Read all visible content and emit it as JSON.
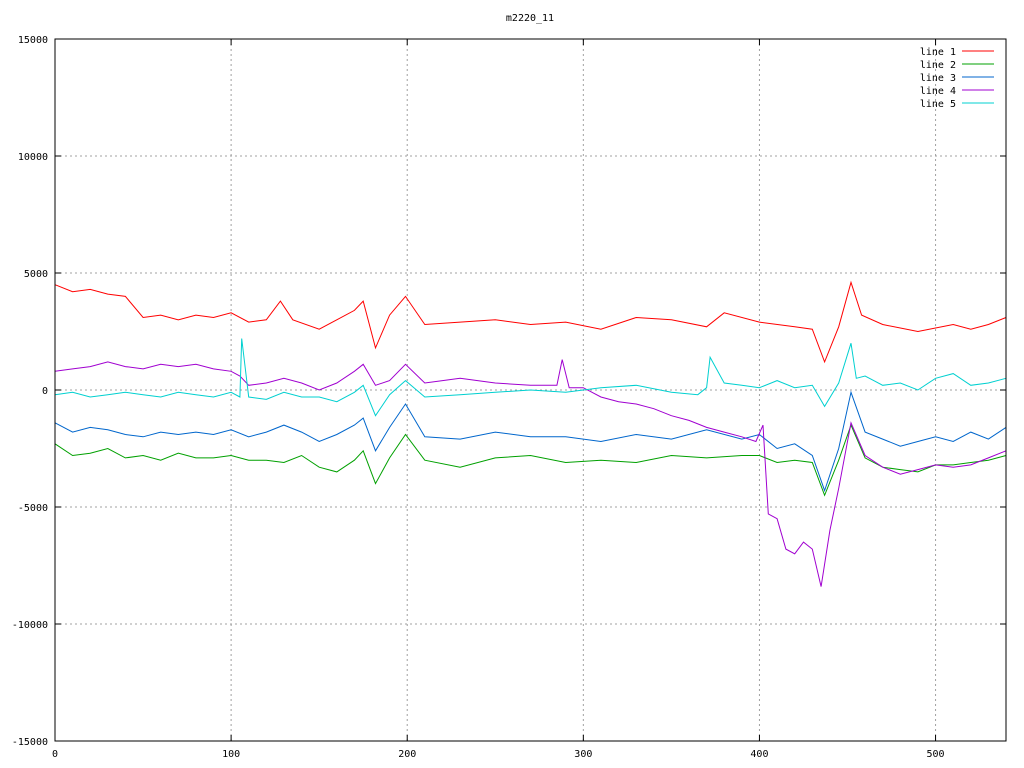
{
  "chart_data": {
    "type": "line",
    "title": "m2220_11",
    "xlim": [
      0,
      540
    ],
    "ylim": [
      -15000,
      15000
    ],
    "x_ticks": [
      0,
      100,
      200,
      300,
      400,
      500
    ],
    "y_ticks": [
      -15000,
      -10000,
      -5000,
      0,
      5000,
      10000,
      15000
    ],
    "grid": true,
    "legend_position": "top-right",
    "series": [
      {
        "name": "line 1",
        "color": "#ff0000",
        "x": [
          0,
          10,
          20,
          30,
          40,
          50,
          60,
          70,
          80,
          90,
          100,
          110,
          120,
          128,
          135,
          150,
          160,
          170,
          175,
          182,
          190,
          199,
          210,
          230,
          250,
          270,
          290,
          310,
          330,
          350,
          370,
          380,
          400,
          420,
          430,
          437,
          445,
          452,
          458,
          470,
          490,
          510,
          520,
          530,
          540
        ],
        "y": [
          4500,
          4200,
          4300,
          4100,
          4000,
          3100,
          3200,
          3000,
          3200,
          3100,
          3300,
          2900,
          3000,
          3800,
          3000,
          2600,
          3000,
          3400,
          3800,
          1800,
          3200,
          4000,
          2800,
          2900,
          3000,
          2800,
          2900,
          2600,
          3100,
          3000,
          2700,
          3300,
          2900,
          2700,
          2600,
          1200,
          2700,
          4600,
          3200,
          2800,
          2500,
          2800,
          2600,
          2800,
          3100
        ]
      },
      {
        "name": "line 2",
        "color": "#00a000",
        "x": [
          0,
          10,
          20,
          30,
          40,
          50,
          60,
          70,
          80,
          90,
          100,
          110,
          120,
          130,
          140,
          150,
          160,
          170,
          175,
          182,
          190,
          199,
          210,
          230,
          250,
          270,
          290,
          310,
          330,
          350,
          370,
          390,
          400,
          410,
          420,
          430,
          437,
          445,
          452,
          460,
          470,
          480,
          490,
          500,
          510,
          520,
          530,
          540
        ],
        "y": [
          -2300,
          -2800,
          -2700,
          -2500,
          -2900,
          -2800,
          -3000,
          -2700,
          -2900,
          -2900,
          -2800,
          -3000,
          -3000,
          -3100,
          -2800,
          -3300,
          -3500,
          -3000,
          -2600,
          -4000,
          -2900,
          -1900,
          -3000,
          -3300,
          -2900,
          -2800,
          -3100,
          -3000,
          -3100,
          -2800,
          -2900,
          -2800,
          -2800,
          -3100,
          -3000,
          -3100,
          -4500,
          -3000,
          -1500,
          -2900,
          -3300,
          -3400,
          -3500,
          -3200,
          -3200,
          -3100,
          -3000,
          -2800
        ]
      },
      {
        "name": "line 3",
        "color": "#0066cc",
        "x": [
          0,
          10,
          20,
          30,
          40,
          50,
          60,
          70,
          80,
          90,
          100,
          110,
          120,
          130,
          140,
          150,
          160,
          170,
          175,
          182,
          190,
          199,
          210,
          230,
          250,
          270,
          290,
          310,
          330,
          350,
          370,
          390,
          400,
          410,
          420,
          430,
          437,
          445,
          452,
          460,
          470,
          480,
          490,
          500,
          510,
          520,
          530,
          540
        ],
        "y": [
          -1400,
          -1800,
          -1600,
          -1700,
          -1900,
          -2000,
          -1800,
          -1900,
          -1800,
          -1900,
          -1700,
          -2000,
          -1800,
          -1500,
          -1800,
          -2200,
          -1900,
          -1500,
          -1200,
          -2600,
          -1600,
          -600,
          -2000,
          -2100,
          -1800,
          -2000,
          -2000,
          -2200,
          -1900,
          -2100,
          -1700,
          -2100,
          -1900,
          -2500,
          -2300,
          -2800,
          -4300,
          -2500,
          -100,
          -1800,
          -2100,
          -2400,
          -2200,
          -2000,
          -2200,
          -1800,
          -2100,
          -1600
        ]
      },
      {
        "name": "line 4",
        "color": "#a000d0",
        "x": [
          0,
          10,
          20,
          30,
          40,
          50,
          60,
          70,
          80,
          90,
          100,
          105,
          110,
          120,
          130,
          140,
          150,
          160,
          170,
          175,
          182,
          190,
          199,
          210,
          230,
          250,
          270,
          285,
          288,
          292,
          300,
          310,
          320,
          330,
          340,
          350,
          360,
          370,
          380,
          390,
          398,
          402,
          405,
          410,
          415,
          420,
          425,
          430,
          435,
          440,
          445,
          452,
          460,
          470,
          480,
          490,
          500,
          510,
          520,
          530,
          540
        ],
        "y": [
          800,
          900,
          1000,
          1200,
          1000,
          900,
          1100,
          1000,
          1100,
          900,
          800,
          600,
          200,
          300,
          500,
          300,
          0,
          300,
          800,
          1100,
          200,
          400,
          1100,
          300,
          500,
          300,
          200,
          200,
          1300,
          100,
          100,
          -300,
          -500,
          -600,
          -800,
          -1100,
          -1300,
          -1600,
          -1800,
          -2000,
          -2200,
          -1500,
          -5300,
          -5500,
          -6800,
          -7000,
          -6500,
          -6800,
          -8400,
          -6000,
          -4200,
          -1400,
          -2800,
          -3300,
          -3600,
          -3400,
          -3200,
          -3300,
          -3200,
          -2900,
          -2600
        ]
      },
      {
        "name": "line 5",
        "color": "#00d0d0",
        "x": [
          0,
          10,
          20,
          30,
          40,
          50,
          60,
          70,
          80,
          90,
          100,
          105,
          106,
          110,
          120,
          130,
          140,
          150,
          160,
          170,
          175,
          182,
          190,
          199,
          210,
          230,
          250,
          270,
          290,
          310,
          330,
          350,
          365,
          370,
          372,
          380,
          390,
          400,
          410,
          420,
          430,
          437,
          445,
          452,
          455,
          460,
          470,
          480,
          490,
          500,
          510,
          520,
          530,
          540
        ],
        "y": [
          -200,
          -100,
          -300,
          -200,
          -100,
          -200,
          -300,
          -100,
          -200,
          -300,
          -100,
          -300,
          2200,
          -300,
          -400,
          -100,
          -300,
          -300,
          -500,
          -100,
          200,
          -1100,
          -200,
          400,
          -300,
          -200,
          -100,
          0,
          -100,
          100,
          200,
          -100,
          -200,
          100,
          1400,
          300,
          200,
          100,
          400,
          100,
          200,
          -700,
          300,
          2000,
          500,
          600,
          200,
          300,
          0,
          500,
          700,
          200,
          300,
          500
        ]
      }
    ]
  }
}
